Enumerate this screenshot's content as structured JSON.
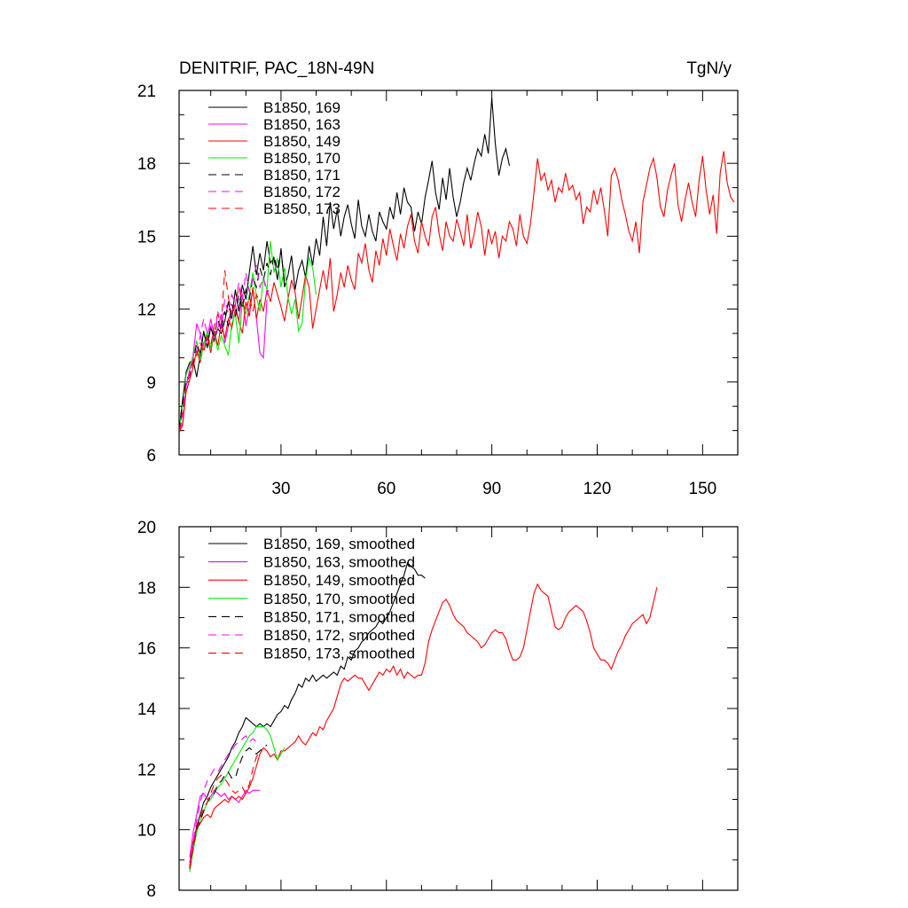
{
  "panel_top": {
    "title_left": "DENITRIF, PAC_18N-49N",
    "title_right": "TgN/y"
  },
  "chart_data": [
    {
      "type": "line",
      "title": "DENITRIF, PAC_18N-49N",
      "units": "TgN/y",
      "xlim": [
        1,
        160
      ],
      "ylim": [
        6,
        21
      ],
      "xticks": [
        30,
        60,
        90,
        120,
        150
      ],
      "yticks": [
        6,
        9,
        12,
        15,
        18,
        21
      ],
      "grid": false,
      "legend_position": "top-left",
      "series": [
        {
          "name": "B1850, 169",
          "color": "#000000",
          "dash": "solid",
          "x_start": 1,
          "values": [
            7.0,
            8.3,
            9.4,
            9.8,
            9.9,
            9.2,
            10.1,
            11.1,
            10.4,
            11.3,
            10.7,
            11.2,
            11.0,
            11.5,
            12.3,
            11.6,
            12.8,
            11.9,
            13.0,
            12.4,
            13.5,
            14.6,
            13.4,
            14.3,
            13.6,
            14.8,
            13.9,
            14.1,
            13.2,
            14.5,
            12.9,
            13.4,
            14.2,
            12.8,
            13.6,
            14.0,
            13.3,
            14.6,
            13.8,
            14.9,
            14.2,
            15.8,
            14.6,
            16.4,
            15.3,
            16.1,
            15.0,
            15.8,
            16.3,
            15.5,
            14.9,
            16.5,
            15.4,
            15.0,
            15.9,
            15.2,
            14.8,
            16.0,
            15.6,
            15.3,
            16.2,
            15.7,
            16.8,
            15.9,
            17.0,
            16.4,
            16.2,
            15.2,
            16.0,
            15.5,
            16.6,
            17.3,
            18.1,
            16.8,
            16.1,
            17.4,
            16.5,
            17.8,
            16.6,
            15.8,
            16.4,
            17.2,
            17.8,
            17.3,
            18.0,
            18.6,
            18.3,
            19.2,
            18.4,
            20.7,
            18.8,
            17.5,
            18.2,
            18.6,
            17.9
          ]
        },
        {
          "name": "B1850, 163",
          "color": "#ff00ff",
          "dash": "solid",
          "x_start": 1,
          "values": [
            7.0,
            7.2,
            8.8,
            9.5,
            10.1,
            11.4,
            11.0,
            10.3,
            10.8,
            11.6,
            10.9,
            11.2,
            11.8,
            10.6,
            11.3,
            11.9,
            12.2,
            11.5,
            12.6,
            11.3,
            12.1,
            12.8,
            11.6,
            10.2,
            10.0,
            12.4
          ]
        },
        {
          "name": "B1850, 149",
          "color": "#ff0000",
          "dash": "solid",
          "x_start": 1,
          "values": [
            6.9,
            7.3,
            8.6,
            9.1,
            9.6,
            10.3,
            9.8,
            10.6,
            10.9,
            10.2,
            11.1,
            10.5,
            11.4,
            10.8,
            11.6,
            11.2,
            12.0,
            11.5,
            11.0,
            12.3,
            11.7,
            12.9,
            11.6,
            12.4,
            11.9,
            12.8,
            12.3,
            13.1,
            12.6,
            12.1,
            11.5,
            12.4,
            13.2,
            12.7,
            11.6,
            12.5,
            13.4,
            12.9,
            11.2,
            12.0,
            12.8,
            13.6,
            12.8,
            14.1,
            11.9,
            12.6,
            13.5,
            12.9,
            13.8,
            13.2,
            12.8,
            14.3,
            13.9,
            14.7,
            13.6,
            13.1,
            14.4,
            13.8,
            14.9,
            14.2,
            15.3,
            14.6,
            14.0,
            15.1,
            14.5,
            15.4,
            15.9,
            14.8,
            14.3,
            15.6,
            15.0,
            14.6,
            15.8,
            16.2,
            15.1,
            14.4,
            15.6,
            15.0,
            14.8,
            15.7,
            15.2,
            14.6,
            15.9,
            14.5,
            15.1,
            16.0,
            15.4,
            14.2,
            15.3,
            14.7,
            15.2,
            14.1,
            15.0,
            14.8,
            15.6,
            15.3,
            14.6,
            15.9,
            15.0,
            14.7,
            15.5,
            16.8,
            18.2,
            17.3,
            17.6,
            16.9,
            17.3,
            16.4,
            17.0,
            16.8,
            17.6,
            16.9,
            17.1,
            16.5,
            16.8,
            15.5,
            16.2,
            16.0,
            16.9,
            16.3,
            17.0,
            16.1,
            15.0,
            17.5,
            17.8,
            17.3,
            16.5,
            15.9,
            15.2,
            14.8,
            15.6,
            14.3,
            16.4,
            17.1,
            17.8,
            18.2,
            17.4,
            16.2,
            15.8,
            16.9,
            17.5,
            18.0,
            16.3,
            15.6,
            16.5,
            17.2,
            16.4,
            15.8,
            17.3,
            18.3,
            16.9,
            15.9,
            16.7,
            15.1,
            17.6,
            18.5,
            17.2,
            16.6,
            16.4
          ]
        },
        {
          "name": "B1850, 170",
          "color": "#00ee00",
          "dash": "solid",
          "x_start": 1,
          "values": [
            7.0,
            8.1,
            9.3,
            9.7,
            10.0,
            10.7,
            9.9,
            10.5,
            11.1,
            10.4,
            11.0,
            10.3,
            10.9,
            10.5,
            10.1,
            11.4,
            11.8,
            10.6,
            12.3,
            11.8,
            12.6,
            13.5,
            12.5,
            11.9,
            13.3,
            12.8,
            14.8,
            13.5,
            14.1,
            12.9,
            13.7,
            12.5,
            11.8,
            12.4,
            11.1,
            11.4,
            13.2,
            14.1,
            13.7,
            12.6
          ]
        },
        {
          "name": "B1850, 171",
          "color": "#000000",
          "dash": "dash",
          "x_start": 1,
          "values": [
            7.0,
            8.2,
            9.1,
            9.3,
            9.8,
            10.6,
            10.2,
            11.0,
            10.6,
            11.2,
            10.9,
            11.6,
            11.1,
            11.9,
            11.3,
            12.2,
            11.7,
            12.6,
            12.0,
            12.8,
            12.4,
            13.3,
            12.9,
            13.7,
            13.2,
            13.9,
            13.4,
            14.2,
            13.6,
            14.4,
            13.1
          ]
        },
        {
          "name": "B1850, 172",
          "color": "#ff00ff",
          "dash": "dash",
          "x_start": 1,
          "values": [
            7.0,
            7.5,
            8.9,
            9.4,
            9.9,
            10.3,
            10.9,
            11.6,
            11.0,
            11.3,
            10.6,
            11.9,
            11.2,
            12.4,
            11.8,
            12.6,
            12.2,
            13.1,
            12.4,
            13.5,
            12.7,
            13.2,
            13.8,
            12.9,
            13.3,
            12.6,
            13.0
          ]
        },
        {
          "name": "B1850, 173",
          "color": "#ff0000",
          "dash": "dash",
          "x_start": 1,
          "values": [
            6.9,
            7.8,
            9.0,
            9.2,
            9.9,
            10.1,
            10.6,
            10.2,
            10.9,
            10.5,
            11.3,
            11.8,
            11.4,
            13.6,
            12.5,
            11.7,
            12.2,
            12.9,
            12.3,
            11.9,
            12.5,
            11.9,
            12.6,
            12.3
          ]
        }
      ]
    },
    {
      "type": "line",
      "xlim": [
        1,
        160
      ],
      "ylim": [
        8,
        20
      ],
      "yticks": [
        8,
        10,
        12,
        14,
        16,
        18,
        20
      ],
      "xticks": [
        30,
        60,
        90,
        120,
        150
      ],
      "x_tick_labels_shown": false,
      "grid": false,
      "legend_position": "top-left",
      "series": [
        {
          "name": "B1850, 169, smoothed",
          "color": "#000000",
          "dash": "solid",
          "x_start": 4,
          "values": [
            8.7,
            9.5,
            10.1,
            10.5,
            10.9,
            11.1,
            11.4,
            11.6,
            11.8,
            12.0,
            12.2,
            12.4,
            12.7,
            12.9,
            13.2,
            13.4,
            13.7,
            13.6,
            13.5,
            13.4,
            13.5,
            13.4,
            13.5,
            13.4,
            13.6,
            13.8,
            13.9,
            14.1,
            14.0,
            14.3,
            14.5,
            14.8,
            14.7,
            15.0,
            14.9,
            15.1,
            14.9,
            15.0,
            15.1,
            15.0,
            15.1,
            15.2,
            15.1,
            15.4,
            15.3,
            15.7,
            15.6,
            15.9,
            16.0,
            16.2,
            16.3,
            16.5,
            16.6,
            16.7,
            16.9,
            16.8,
            17.0,
            17.2,
            17.5,
            17.8,
            18.1,
            18.4,
            18.8,
            18.7,
            18.6,
            18.4,
            18.4,
            18.3
          ]
        },
        {
          "name": "B1850, 163, smoothed",
          "color": "#ff00ff",
          "dash": "solid",
          "x_start": 4,
          "values": [
            9.1,
            9.9,
            10.5,
            11.1,
            11.2,
            11.0,
            11.1,
            11.3,
            11.2,
            11.1,
            11.2,
            11.0,
            11.1,
            11.0,
            10.9,
            11.1,
            11.3,
            11.2,
            11.3,
            11.3,
            11.3
          ]
        },
        {
          "name": "B1850, 149, smoothed",
          "color": "#ff0000",
          "dash": "solid",
          "x_start": 4,
          "values": [
            8.9,
            9.6,
            10.0,
            10.2,
            10.4,
            10.5,
            10.4,
            10.7,
            10.8,
            10.9,
            11.0,
            10.9,
            11.1,
            11.0,
            11.1,
            11.0,
            11.2,
            11.4,
            11.7,
            12.1,
            12.5,
            12.7,
            12.6,
            12.4,
            12.5,
            12.3,
            12.6,
            12.6,
            12.7,
            12.8,
            12.9,
            13.1,
            12.9,
            12.8,
            13.0,
            13.2,
            13.1,
            13.4,
            13.3,
            13.6,
            13.8,
            14.0,
            14.4,
            14.8,
            15.0,
            14.9,
            15.0,
            15.1,
            15.0,
            15.0,
            14.8,
            14.6,
            14.8,
            15.0,
            15.2,
            15.1,
            15.3,
            15.2,
            15.4,
            15.1,
            15.3,
            15.0,
            15.2,
            15.1,
            15.0,
            15.1,
            15.1,
            15.5,
            16.2,
            16.6,
            16.9,
            17.2,
            17.5,
            17.6,
            17.4,
            17.1,
            16.9,
            16.8,
            16.7,
            16.5,
            16.4,
            16.3,
            16.2,
            16.0,
            16.1,
            16.3,
            16.5,
            16.6,
            16.5,
            16.5,
            16.3,
            15.9,
            15.6,
            15.6,
            15.7,
            16.0,
            16.6,
            17.2,
            17.8,
            18.1,
            17.9,
            17.8,
            17.7,
            17.2,
            16.7,
            16.6,
            16.7,
            17.0,
            17.2,
            17.3,
            17.4,
            17.3,
            17.2,
            16.9,
            16.5,
            16.0,
            15.8,
            15.6,
            15.6,
            15.5,
            15.3,
            15.6,
            15.9,
            16.1,
            16.4,
            16.6,
            16.8,
            16.9,
            17.0,
            17.1,
            16.8,
            17.0,
            17.5,
            18.0
          ]
        },
        {
          "name": "B1850, 170, smoothed",
          "color": "#00ee00",
          "dash": "solid",
          "x_start": 4,
          "values": [
            8.6,
            9.3,
            9.9,
            10.3,
            10.6,
            10.9,
            11.0,
            11.2,
            11.4,
            11.5,
            11.7,
            11.9,
            12.1,
            12.3,
            12.5,
            12.7,
            12.9,
            13.1,
            13.2,
            13.4,
            13.4,
            13.4,
            13.3,
            13.1,
            12.7,
            12.3,
            12.5,
            12.7
          ]
        },
        {
          "name": "B1850, 171, smoothed",
          "color": "#000000",
          "dash": "dash",
          "x_start": 4,
          "values": [
            8.7,
            9.4,
            10.0,
            10.3,
            10.6,
            10.9,
            11.1,
            11.2,
            11.5,
            11.6,
            11.8,
            11.9,
            11.7,
            11.7,
            12.1,
            12.4,
            12.6,
            12.7,
            12.6,
            12.5,
            12.6,
            12.7,
            12.8
          ]
        },
        {
          "name": "B1850, 172, smoothed",
          "color": "#ff00ff",
          "dash": "dash",
          "x_start": 4,
          "values": [
            8.8,
            9.6,
            10.3,
            10.9,
            11.3,
            11.6,
            11.8,
            12.0,
            11.9,
            12.1,
            12.3,
            12.5,
            12.6,
            12.8,
            12.9,
            13.0,
            13.1,
            12.9,
            13.0,
            12.9,
            13.0
          ]
        },
        {
          "name": "B1850, 173, smoothed",
          "color": "#ff0000",
          "dash": "dash",
          "x_start": 4,
          "values": [
            8.7,
            9.4,
            10.0,
            10.4,
            10.7,
            10.9,
            11.2,
            11.5,
            11.7,
            11.8,
            11.7,
            11.5,
            11.3,
            11.2,
            11.3,
            11.4,
            11.2,
            11.5,
            12.0,
            12.4,
            12.6
          ]
        }
      ]
    }
  ]
}
